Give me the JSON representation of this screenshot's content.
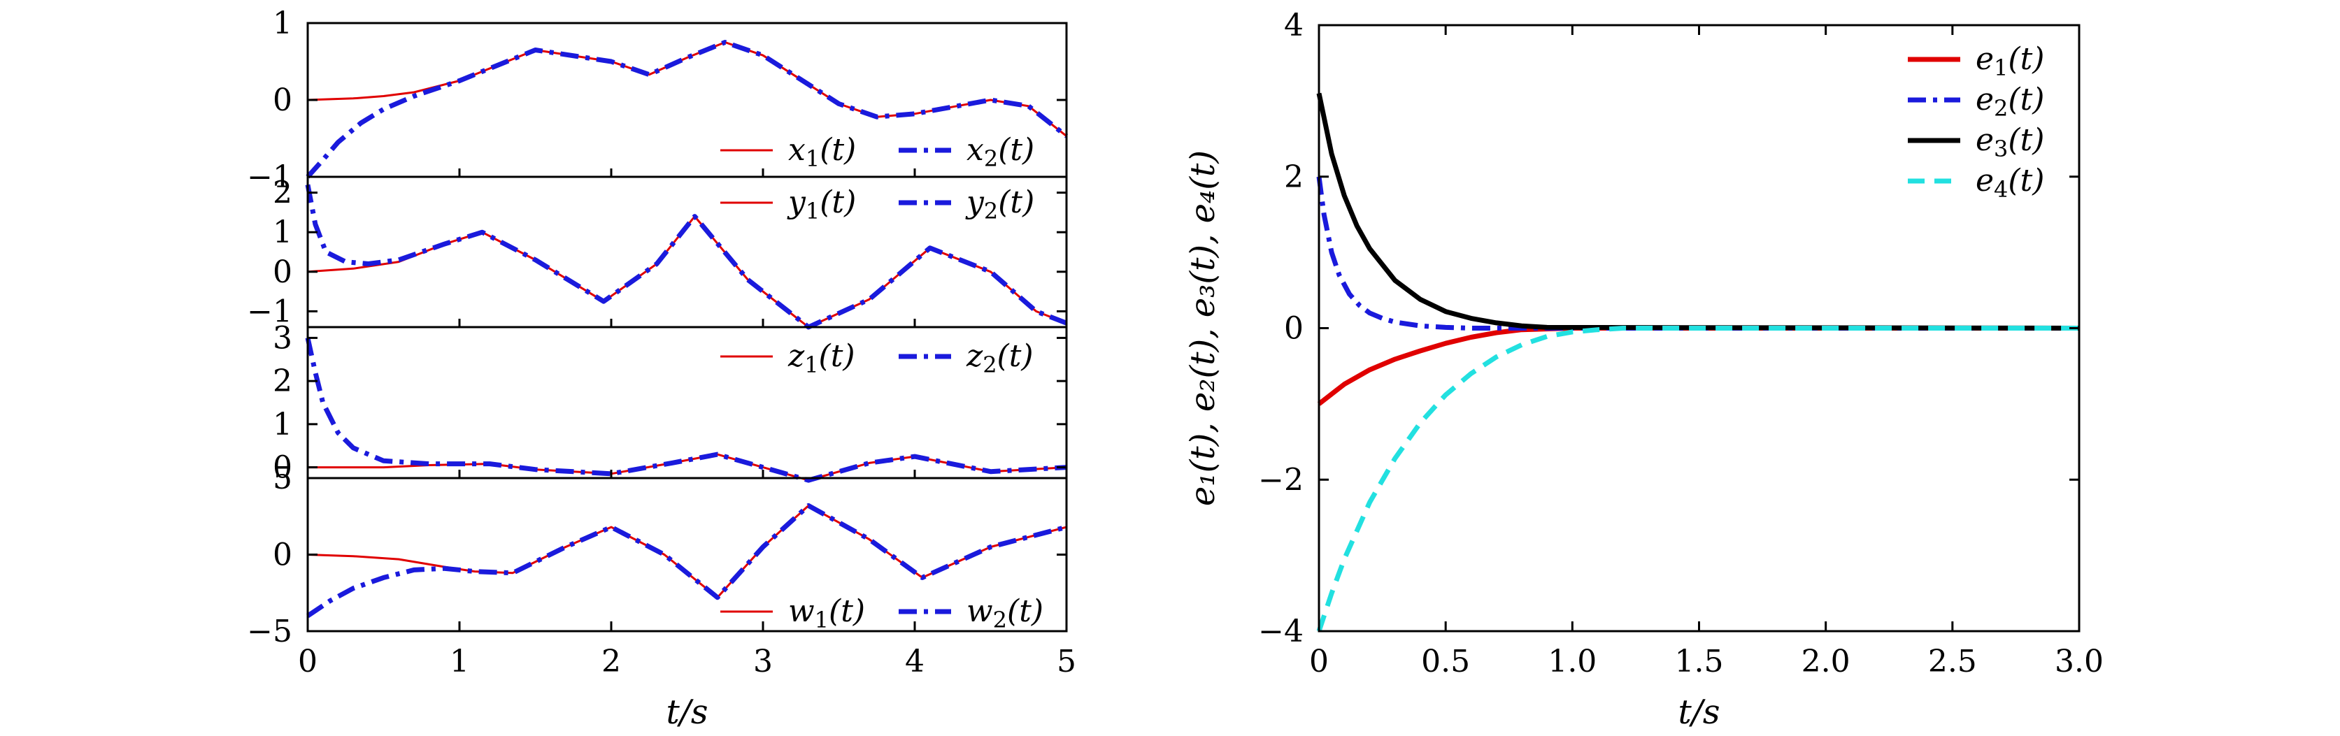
{
  "chart_data": [
    {
      "type": "line",
      "panel": "left-top",
      "xlim": [
        0,
        5
      ],
      "ylim": [
        -1,
        1
      ],
      "yticks": [
        "1",
        "0",
        "−1"
      ],
      "legend": "bottom-right",
      "series": [
        {
          "name": "x₁(t)",
          "color": "#e00000",
          "style": "solid",
          "x": [
            0,
            0.3,
            0.5,
            0.7,
            1.0,
            1.5,
            2.0,
            2.25,
            2.5,
            2.75,
            3.0,
            3.5,
            3.75,
            4.0,
            4.5,
            4.75,
            5.0
          ],
          "y": [
            0,
            0.02,
            0.05,
            0.1,
            0.25,
            0.65,
            0.5,
            0.33,
            0.55,
            0.75,
            0.58,
            -0.05,
            -0.22,
            -0.18,
            0.0,
            -0.08,
            -0.47
          ]
        },
        {
          "name": "x₂(t)",
          "color": "#1a1adc",
          "style": "dashdot",
          "x": [
            0,
            0.1,
            0.2,
            0.35,
            0.5,
            0.7,
            1.0,
            1.5,
            2.0,
            2.25,
            2.5,
            2.75,
            3.0,
            3.5,
            3.75,
            4.0,
            4.5,
            4.75,
            5.0
          ],
          "y": [
            -1,
            -0.78,
            -0.55,
            -0.3,
            -0.12,
            0.05,
            0.25,
            0.65,
            0.5,
            0.33,
            0.55,
            0.75,
            0.58,
            -0.05,
            -0.22,
            -0.18,
            0.0,
            -0.08,
            -0.47
          ]
        }
      ]
    },
    {
      "type": "line",
      "panel": "left-second",
      "xlim": [
        0,
        5
      ],
      "ylim": [
        -1.4,
        2.4
      ],
      "yticks": [
        "2",
        "1",
        "0",
        "−1"
      ],
      "legend": "top-right",
      "series": [
        {
          "name": "y₁(t)",
          "color": "#e00000",
          "style": "solid",
          "x": [
            0,
            0.3,
            0.6,
            0.9,
            1.15,
            1.5,
            1.95,
            2.3,
            2.55,
            2.9,
            3.3,
            3.7,
            4.1,
            4.5,
            4.8,
            5.0
          ],
          "y": [
            0,
            0.08,
            0.25,
            0.7,
            1.0,
            0.3,
            -0.75,
            0.2,
            1.4,
            -0.2,
            -1.4,
            -0.7,
            0.6,
            0.0,
            -1.0,
            -1.3
          ]
        },
        {
          "name": "y₂(t)",
          "color": "#1a1adc",
          "style": "dashdot",
          "x": [
            0,
            0.05,
            0.12,
            0.25,
            0.4,
            0.6,
            0.9,
            1.15,
            1.5,
            1.95,
            2.3,
            2.55,
            2.9,
            3.3,
            3.7,
            4.1,
            4.5,
            4.8,
            5.0
          ],
          "y": [
            2.2,
            1.2,
            0.5,
            0.25,
            0.2,
            0.3,
            0.7,
            1.0,
            0.3,
            -0.75,
            0.2,
            1.4,
            -0.2,
            -1.4,
            -0.7,
            0.6,
            0.0,
            -1.0,
            -1.3
          ]
        }
      ]
    },
    {
      "type": "line",
      "panel": "left-third",
      "xlim": [
        0,
        5
      ],
      "ylim": [
        -0.25,
        3.25
      ],
      "yticks": [
        "3",
        "2",
        "1",
        "0"
      ],
      "legend": "top-right",
      "series": [
        {
          "name": "z₁(t)",
          "color": "#e00000",
          "style": "solid",
          "x": [
            0,
            0.5,
            0.8,
            1.2,
            1.5,
            2.0,
            2.4,
            2.7,
            3.0,
            3.3,
            3.7,
            4.0,
            4.5,
            5.0
          ],
          "y": [
            0,
            0.0,
            0.05,
            0.08,
            -0.05,
            -0.15,
            0.1,
            0.3,
            0.0,
            -0.3,
            0.1,
            0.25,
            -0.1,
            0.0
          ]
        },
        {
          "name": "z₂(t)",
          "color": "#1a1adc",
          "style": "dashdot",
          "x": [
            0,
            0.05,
            0.1,
            0.2,
            0.3,
            0.5,
            0.8,
            1.2,
            1.5,
            2.0,
            2.4,
            2.7,
            3.0,
            3.3,
            3.7,
            4.0,
            4.5,
            5.0
          ],
          "y": [
            3.0,
            2.2,
            1.5,
            0.8,
            0.45,
            0.15,
            0.08,
            0.08,
            -0.05,
            -0.15,
            0.1,
            0.3,
            0.0,
            -0.3,
            0.1,
            0.25,
            -0.1,
            0.0
          ]
        }
      ]
    },
    {
      "type": "line",
      "panel": "left-bottom",
      "xlim": [
        0,
        5
      ],
      "ylim": [
        -5,
        5
      ],
      "yticks": [
        "5",
        "0",
        "−5"
      ],
      "xticks": [
        "0",
        "1",
        "2",
        "3",
        "4",
        "5"
      ],
      "xlabel": "t/s",
      "legend": "bottom-right",
      "series": [
        {
          "name": "w₁(t)",
          "color": "#e00000",
          "style": "solid",
          "x": [
            0,
            0.3,
            0.6,
            0.9,
            1.1,
            1.35,
            1.7,
            2.0,
            2.35,
            2.7,
            3.0,
            3.3,
            3.7,
            4.05,
            4.5,
            5.0
          ],
          "y": [
            0,
            -0.1,
            -0.3,
            -0.8,
            -1.1,
            -1.2,
            0.5,
            1.8,
            0.0,
            -2.8,
            0.5,
            3.2,
            1.0,
            -1.5,
            0.5,
            1.8
          ]
        },
        {
          "name": "w₂(t)",
          "color": "#1a1adc",
          "style": "dashdot",
          "x": [
            0,
            0.15,
            0.3,
            0.5,
            0.7,
            0.9,
            1.1,
            1.35,
            1.7,
            2.0,
            2.35,
            2.7,
            3.0,
            3.3,
            3.7,
            4.05,
            4.5,
            5.0
          ],
          "y": [
            -4.0,
            -3.0,
            -2.2,
            -1.5,
            -1.0,
            -0.9,
            -1.1,
            -1.2,
            0.5,
            1.8,
            0.0,
            -2.8,
            0.5,
            3.2,
            1.0,
            -1.5,
            0.5,
            1.8
          ]
        }
      ]
    },
    {
      "type": "line",
      "panel": "right",
      "xlim": [
        0,
        3
      ],
      "ylim": [
        -4,
        4
      ],
      "xticks": [
        "0",
        "0.5",
        "1.0",
        "1.5",
        "2.0",
        "2.5",
        "3.0"
      ],
      "yticks": [
        "4",
        "2",
        "0",
        "−2",
        "−4"
      ],
      "xlabel": "t/s",
      "ylabel": "e₁(t), e₂(t), e₃(t), e₄(t)",
      "legend": "top-right",
      "series": [
        {
          "name": "e₁(t)",
          "color": "#e00000",
          "style": "solid",
          "x": [
            0,
            0.1,
            0.2,
            0.3,
            0.4,
            0.5,
            0.6,
            0.7,
            0.8,
            1.0,
            3.0
          ],
          "y": [
            -1.0,
            -0.74,
            -0.55,
            -0.41,
            -0.3,
            -0.2,
            -0.12,
            -0.06,
            -0.02,
            0,
            0
          ]
        },
        {
          "name": "e₂(t)",
          "color": "#1a1adc",
          "style": "dashdot",
          "x": [
            0,
            0.02,
            0.05,
            0.08,
            0.12,
            0.16,
            0.2,
            0.25,
            0.3,
            0.4,
            0.5,
            0.6,
            3.0
          ],
          "y": [
            2.0,
            1.5,
            1.0,
            0.7,
            0.45,
            0.3,
            0.2,
            0.13,
            0.08,
            0.03,
            0.01,
            0,
            0
          ]
        },
        {
          "name": "e₃(t)",
          "color": "#000000",
          "style": "solid",
          "x": [
            0,
            0.05,
            0.1,
            0.15,
            0.2,
            0.3,
            0.4,
            0.5,
            0.6,
            0.7,
            0.8,
            0.9,
            3.0
          ],
          "y": [
            3.1,
            2.3,
            1.75,
            1.35,
            1.05,
            0.63,
            0.38,
            0.22,
            0.13,
            0.07,
            0.03,
            0.01,
            0
          ]
        },
        {
          "name": "e₄(t)",
          "color": "#22e0e0",
          "style": "dashed",
          "x": [
            0,
            0.05,
            0.1,
            0.2,
            0.3,
            0.4,
            0.5,
            0.6,
            0.7,
            0.8,
            0.9,
            1.0,
            1.1,
            1.2,
            3.0
          ],
          "y": [
            -4.0,
            -3.5,
            -3.05,
            -2.3,
            -1.72,
            -1.25,
            -0.88,
            -0.6,
            -0.38,
            -0.22,
            -0.11,
            -0.05,
            -0.02,
            0,
            0
          ]
        }
      ]
    }
  ]
}
